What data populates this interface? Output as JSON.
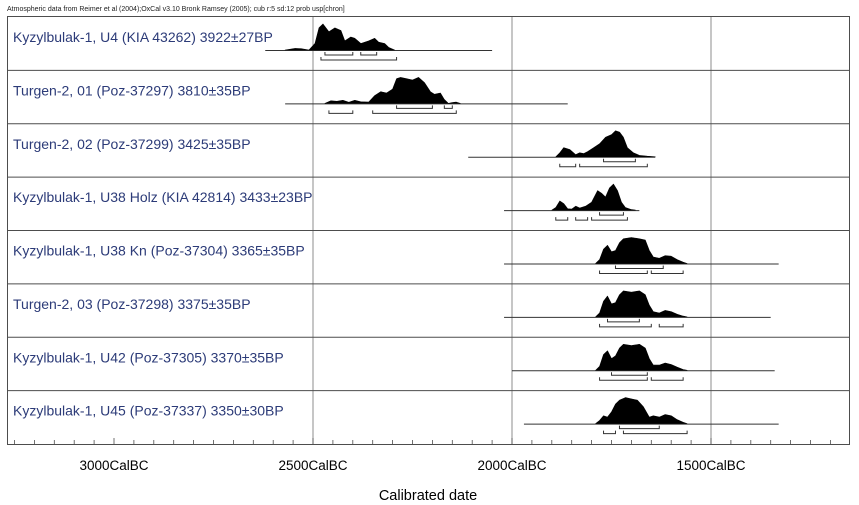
{
  "chart_data": {
    "type": "calibrated radiocarbon probability plot",
    "header": "Atmospheric data from Reimer et al (2004);OxCal v3.10 Bronk Ramsey (2005); cub r:5 sd:12 prob usp[chron]",
    "xlabel": "Calibrated date",
    "x_axis": {
      "min": 3400,
      "max": 1200,
      "direction": "descending BC",
      "ticks": [
        3000,
        2500,
        2000,
        1500
      ],
      "tick_labels": [
        "3000CalBC",
        "2500CalBC",
        "2000CalBC",
        "1500CalBC"
      ],
      "minor_tick_step": 50,
      "gridlines": [
        2500,
        2000,
        1500
      ]
    },
    "series": [
      {
        "label": "Kyzylbulak-1, U4 (KIA 43262)  3922±27BP",
        "range": [
          2620,
          2050
        ],
        "distribution": [
          [
            2570,
            0
          ],
          [
            2545,
            0.06
          ],
          [
            2530,
            0.05
          ],
          [
            2510,
            0
          ],
          [
            2495,
            0.25
          ],
          [
            2485,
            0.85
          ],
          [
            2475,
            1.0
          ],
          [
            2460,
            0.7
          ],
          [
            2445,
            0.85
          ],
          [
            2430,
            0.75
          ],
          [
            2420,
            0.35
          ],
          [
            2405,
            0.5
          ],
          [
            2395,
            0.45
          ],
          [
            2380,
            0.25
          ],
          [
            2360,
            0.35
          ],
          [
            2345,
            0.45
          ],
          [
            2335,
            0.3
          ],
          [
            2320,
            0.25
          ],
          [
            2310,
            0.1
          ],
          [
            2295,
            0
          ]
        ],
        "sigma1": [
          [
            2470,
            2400
          ],
          [
            2380,
            2340
          ]
        ],
        "sigma2": [
          [
            2480,
            2290
          ]
        ]
      },
      {
        "label": "Turgen-2, 01 (Poz-37297)  3810±35BP",
        "range": [
          2570,
          1860
        ],
        "distribution": [
          [
            2470,
            0
          ],
          [
            2455,
            0.1
          ],
          [
            2440,
            0.08
          ],
          [
            2425,
            0.12
          ],
          [
            2410,
            0.04
          ],
          [
            2395,
            0.12
          ],
          [
            2380,
            0.06
          ],
          [
            2360,
            0.05
          ],
          [
            2345,
            0.3
          ],
          [
            2330,
            0.45
          ],
          [
            2315,
            0.4
          ],
          [
            2300,
            0.55
          ],
          [
            2290,
            0.95
          ],
          [
            2280,
            1.0
          ],
          [
            2265,
            0.95
          ],
          [
            2250,
            0.9
          ],
          [
            2235,
            1.0
          ],
          [
            2220,
            0.8
          ],
          [
            2205,
            0.45
          ],
          [
            2195,
            0.35
          ],
          [
            2180,
            0.4
          ],
          [
            2170,
            0.15
          ],
          [
            2160,
            0
          ],
          [
            2150,
            0.03
          ],
          [
            2140,
            0.05
          ],
          [
            2130,
            0
          ]
        ],
        "sigma1": [
          [
            2290,
            2200
          ],
          [
            2170,
            2150
          ]
        ],
        "sigma2": [
          [
            2460,
            2400
          ],
          [
            2350,
            2140
          ]
        ]
      },
      {
        "label": "Turgen-2, 02 (Poz-37299)  3425±35BP",
        "range": [
          2110,
          1640
        ],
        "distribution": [
          [
            1890,
            0
          ],
          [
            1880,
            0.15
          ],
          [
            1870,
            0.35
          ],
          [
            1855,
            0.28
          ],
          [
            1840,
            0.08
          ],
          [
            1830,
            0.15
          ],
          [
            1820,
            0.12
          ],
          [
            1810,
            0.2
          ],
          [
            1795,
            0.35
          ],
          [
            1780,
            0.5
          ],
          [
            1765,
            0.75
          ],
          [
            1750,
            0.85
          ],
          [
            1740,
            1.0
          ],
          [
            1730,
            0.95
          ],
          [
            1720,
            0.75
          ],
          [
            1710,
            0.35
          ],
          [
            1695,
            0.15
          ],
          [
            1680,
            0.05
          ],
          [
            1660,
            0.02
          ],
          [
            1640,
            0
          ]
        ],
        "sigma1": [
          [
            1770,
            1690
          ]
        ],
        "sigma2": [
          [
            1880,
            1840
          ],
          [
            1830,
            1660
          ]
        ]
      },
      {
        "label": "Kyzylbulak-1, U38 Holz (KIA 42814)  3433±23BP",
        "range": [
          2020,
          1680
        ],
        "distribution": [
          [
            1900,
            0
          ],
          [
            1890,
            0.1
          ],
          [
            1880,
            0.35
          ],
          [
            1870,
            0.25
          ],
          [
            1860,
            0.05
          ],
          [
            1850,
            0.04
          ],
          [
            1840,
            0.15
          ],
          [
            1830,
            0.08
          ],
          [
            1815,
            0.15
          ],
          [
            1800,
            0.3
          ],
          [
            1785,
            0.75
          ],
          [
            1775,
            0.65
          ],
          [
            1765,
            0.5
          ],
          [
            1755,
            0.85
          ],
          [
            1745,
            1.0
          ],
          [
            1735,
            0.75
          ],
          [
            1725,
            0.3
          ],
          [
            1715,
            0.1
          ],
          [
            1700,
            0.02
          ],
          [
            1690,
            0
          ]
        ],
        "sigma1": [
          [
            1780,
            1720
          ]
        ],
        "sigma2": [
          [
            1890,
            1860
          ],
          [
            1840,
            1810
          ],
          [
            1800,
            1710
          ]
        ]
      },
      {
        "label": "Kyzylbulak-1, U38 Kn (Poz-37304)  3365±35BP",
        "range": [
          2020,
          1330
        ],
        "distribution": [
          [
            1790,
            0
          ],
          [
            1780,
            0.15
          ],
          [
            1770,
            0.55
          ],
          [
            1760,
            0.7
          ],
          [
            1750,
            0.45
          ],
          [
            1740,
            0.5
          ],
          [
            1730,
            0.8
          ],
          [
            1720,
            0.95
          ],
          [
            1700,
            1.0
          ],
          [
            1680,
            0.95
          ],
          [
            1665,
            0.9
          ],
          [
            1655,
            0.5
          ],
          [
            1645,
            0.25
          ],
          [
            1630,
            0.2
          ],
          [
            1615,
            0.3
          ],
          [
            1600,
            0.28
          ],
          [
            1585,
            0.15
          ],
          [
            1570,
            0.05
          ],
          [
            1560,
            0
          ]
        ],
        "sigma1": [
          [
            1740,
            1620
          ]
        ],
        "sigma2": [
          [
            1780,
            1660
          ],
          [
            1650,
            1570
          ]
        ]
      },
      {
        "label": "Turgen-2, 03 (Poz-37298)  3375±35BP",
        "range": [
          2020,
          1350
        ],
        "distribution": [
          [
            1790,
            0
          ],
          [
            1780,
            0.15
          ],
          [
            1770,
            0.6
          ],
          [
            1760,
            0.8
          ],
          [
            1750,
            0.5
          ],
          [
            1740,
            0.55
          ],
          [
            1730,
            0.85
          ],
          [
            1720,
            1.0
          ],
          [
            1700,
            0.95
          ],
          [
            1680,
            1.0
          ],
          [
            1665,
            0.85
          ],
          [
            1655,
            0.45
          ],
          [
            1645,
            0.2
          ],
          [
            1630,
            0.15
          ],
          [
            1615,
            0.25
          ],
          [
            1600,
            0.2
          ],
          [
            1585,
            0.1
          ],
          [
            1570,
            0.03
          ],
          [
            1560,
            0
          ]
        ],
        "sigma1": [
          [
            1760,
            1680
          ]
        ],
        "sigma2": [
          [
            1780,
            1650
          ],
          [
            1630,
            1570
          ]
        ]
      },
      {
        "label": "Kyzylbulak-1, U42 (Poz-37305)  3370±35BP",
        "range": [
          2000,
          1340
        ],
        "distribution": [
          [
            1790,
            0
          ],
          [
            1780,
            0.15
          ],
          [
            1770,
            0.6
          ],
          [
            1760,
            0.75
          ],
          [
            1750,
            0.45
          ],
          [
            1740,
            0.55
          ],
          [
            1730,
            0.85
          ],
          [
            1720,
            1.0
          ],
          [
            1700,
            0.95
          ],
          [
            1680,
            1.0
          ],
          [
            1665,
            0.85
          ],
          [
            1655,
            0.45
          ],
          [
            1645,
            0.2
          ],
          [
            1630,
            0.2
          ],
          [
            1615,
            0.28
          ],
          [
            1600,
            0.22
          ],
          [
            1585,
            0.12
          ],
          [
            1570,
            0.03
          ],
          [
            1560,
            0
          ]
        ],
        "sigma1": [
          [
            1750,
            1660
          ]
        ],
        "sigma2": [
          [
            1780,
            1660
          ],
          [
            1650,
            1570
          ]
        ]
      },
      {
        "label": "Kyzylbulak-1, U45 (Poz-37337)  3350±30BP",
        "range": [
          1970,
          1330
        ],
        "distribution": [
          [
            1790,
            0
          ],
          [
            1780,
            0.12
          ],
          [
            1770,
            0.3
          ],
          [
            1760,
            0.25
          ],
          [
            1750,
            0.45
          ],
          [
            1740,
            0.75
          ],
          [
            1730,
            0.9
          ],
          [
            1715,
            1.0
          ],
          [
            1700,
            0.95
          ],
          [
            1685,
            0.9
          ],
          [
            1670,
            0.65
          ],
          [
            1655,
            0.25
          ],
          [
            1645,
            0.3
          ],
          [
            1630,
            0.25
          ],
          [
            1615,
            0.35
          ],
          [
            1600,
            0.3
          ],
          [
            1585,
            0.15
          ],
          [
            1570,
            0.05
          ],
          [
            1560,
            0
          ]
        ],
        "sigma1": [
          [
            1730,
            1630
          ]
        ],
        "sigma2": [
          [
            1770,
            1740
          ],
          [
            1720,
            1560
          ]
        ]
      }
    ]
  }
}
